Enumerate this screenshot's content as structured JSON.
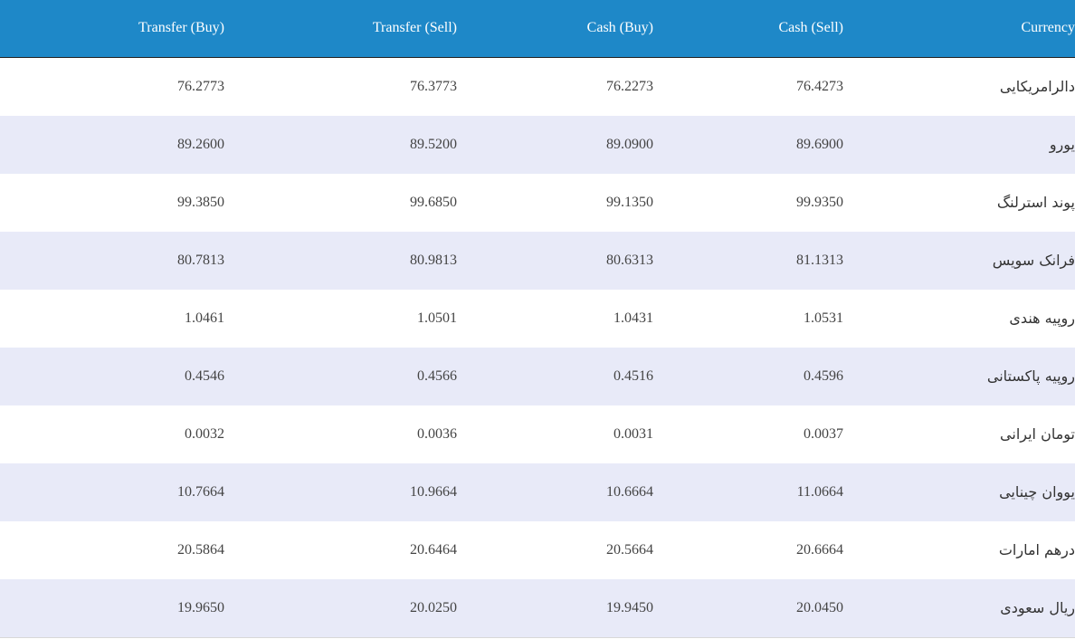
{
  "table": {
    "headers": {
      "transfer_buy": "Transfer (Buy)",
      "transfer_sell": "Transfer (Sell)",
      "cash_buy": "Cash (Buy)",
      "cash_sell": "Cash (Sell)",
      "currency": "Currency"
    },
    "rows": [
      {
        "transfer_buy": "76.2773",
        "transfer_sell": "76.3773",
        "cash_buy": "76.2273",
        "cash_sell": "76.4273",
        "currency": "دالرامریکایی"
      },
      {
        "transfer_buy": "89.2600",
        "transfer_sell": "89.5200",
        "cash_buy": "89.0900",
        "cash_sell": "89.6900",
        "currency": "یورو"
      },
      {
        "transfer_buy": "99.3850",
        "transfer_sell": "99.6850",
        "cash_buy": "99.1350",
        "cash_sell": "99.9350",
        "currency": "پوند استرلنگ"
      },
      {
        "transfer_buy": "80.7813",
        "transfer_sell": "80.9813",
        "cash_buy": "80.6313",
        "cash_sell": "81.1313",
        "currency": "فرانک سویس"
      },
      {
        "transfer_buy": "1.0461",
        "transfer_sell": "1.0501",
        "cash_buy": "1.0431",
        "cash_sell": "1.0531",
        "currency": "روپیه هندی"
      },
      {
        "transfer_buy": "0.4546",
        "transfer_sell": "0.4566",
        "cash_buy": "0.4516",
        "cash_sell": "0.4596",
        "currency": "روپیه پاکستانی"
      },
      {
        "transfer_buy": "0.0032",
        "transfer_sell": "0.0036",
        "cash_buy": "0.0031",
        "cash_sell": "0.0037",
        "currency": "تومان ایرانی"
      },
      {
        "transfer_buy": "10.7664",
        "transfer_sell": "10.9664",
        "cash_buy": "10.6664",
        "cash_sell": "11.0664",
        "currency": "یووان چینایی"
      },
      {
        "transfer_buy": "20.5864",
        "transfer_sell": "20.6464",
        "cash_buy": "20.5664",
        "cash_sell": "20.6664",
        "currency": "درهم امارات"
      },
      {
        "transfer_buy": "19.9650",
        "transfer_sell": "20.0250",
        "cash_buy": "19.9450",
        "cash_sell": "20.0450",
        "currency": "ریال سعودی"
      }
    ]
  },
  "colors": {
    "header_bg": "#1e88c8",
    "row_alt_bg": "#e8eaf8"
  }
}
